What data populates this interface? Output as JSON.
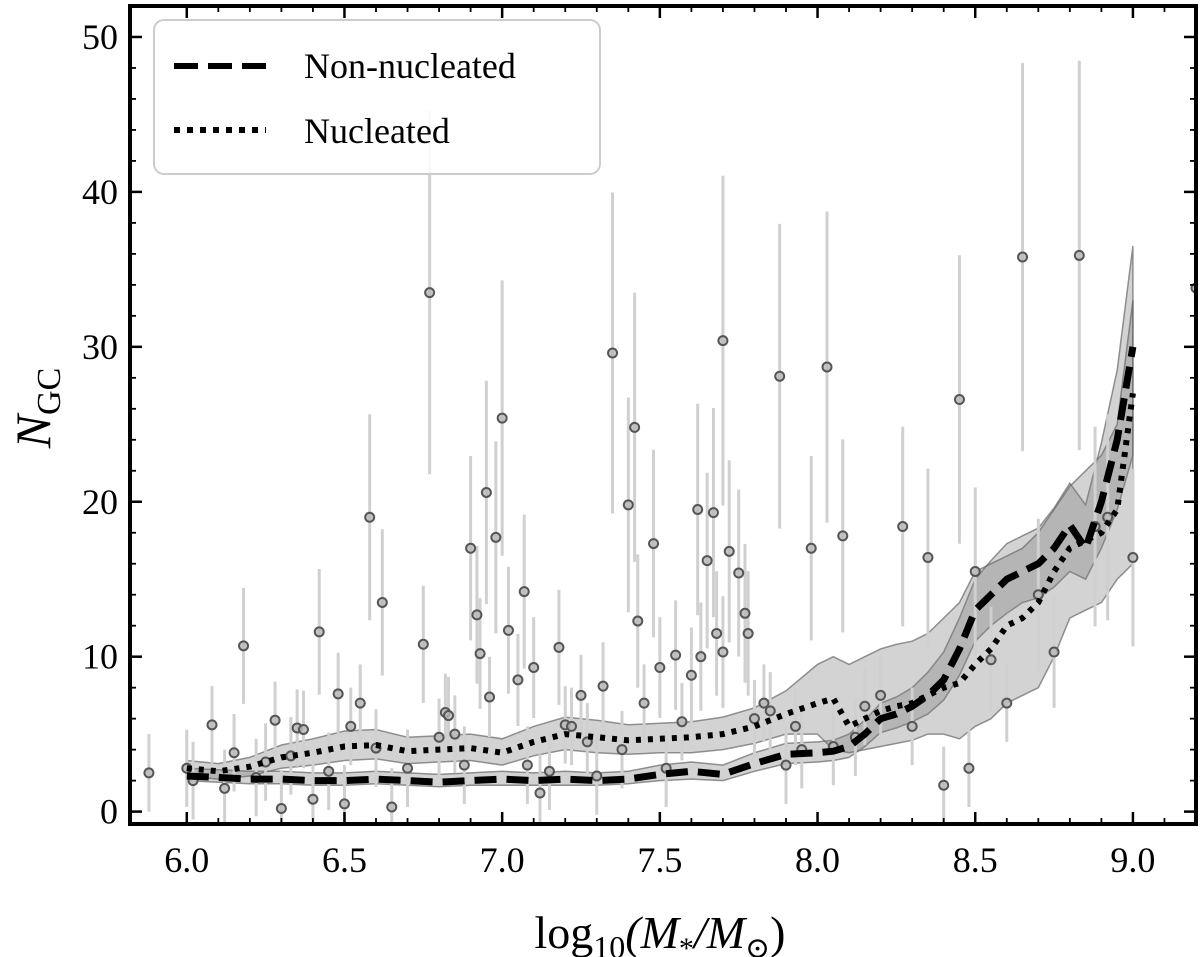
{
  "chart_data": {
    "type": "scatter",
    "title": "",
    "xlabel": {
      "main": "log",
      "sub": "10",
      "rest": "(M",
      "star": "*",
      "mid": "/M",
      "sun": "⊙",
      "end": ")"
    },
    "ylabel": {
      "main": "N",
      "sub": "GC"
    },
    "xlim": [
      5.82,
      9.2
    ],
    "ylim": [
      -0.8,
      52
    ],
    "xticks": [
      6.0,
      6.5,
      7.0,
      7.5,
      8.0,
      8.5,
      9.0
    ],
    "xtick_labels": [
      "6.0",
      "6.5",
      "7.0",
      "7.5",
      "8.0",
      "8.5",
      "9.0"
    ],
    "yticks": [
      0,
      10,
      20,
      30,
      40,
      50
    ],
    "ytick_labels": [
      "0",
      "10",
      "20",
      "30",
      "40",
      "50"
    ],
    "grid": false,
    "legend": {
      "position": "top-left",
      "entries": [
        {
          "label": "Non-nucleated",
          "style": "dashed"
        },
        {
          "label": "Nucleated",
          "style": "dotted"
        }
      ]
    },
    "scatter_points": [
      [
        5.88,
        2.5
      ],
      [
        6.0,
        2.8
      ],
      [
        6.02,
        2.0
      ],
      [
        6.08,
        5.6
      ],
      [
        6.12,
        1.5
      ],
      [
        6.15,
        3.8
      ],
      [
        6.18,
        10.7
      ],
      [
        6.22,
        2.2
      ],
      [
        6.25,
        3.2
      ],
      [
        6.28,
        5.9
      ],
      [
        6.3,
        0.2
      ],
      [
        6.33,
        3.6
      ],
      [
        6.35,
        5.4
      ],
      [
        6.37,
        5.3
      ],
      [
        6.4,
        0.8
      ],
      [
        6.42,
        11.6
      ],
      [
        6.45,
        2.6
      ],
      [
        6.48,
        7.6
      ],
      [
        6.5,
        0.5
      ],
      [
        6.52,
        5.5
      ],
      [
        6.55,
        7.0
      ],
      [
        6.58,
        19.0
      ],
      [
        6.6,
        4.1
      ],
      [
        6.62,
        13.5
      ],
      [
        6.65,
        0.3
      ],
      [
        6.7,
        2.8
      ],
      [
        6.75,
        10.8
      ],
      [
        6.77,
        33.5
      ],
      [
        6.8,
        4.8
      ],
      [
        6.82,
        6.4
      ],
      [
        6.83,
        6.2
      ],
      [
        6.85,
        5.0
      ],
      [
        6.88,
        3.0
      ],
      [
        6.9,
        17.0
      ],
      [
        6.92,
        12.7
      ],
      [
        6.93,
        10.2
      ],
      [
        6.95,
        20.6
      ],
      [
        6.96,
        7.4
      ],
      [
        6.98,
        17.7
      ],
      [
        7.0,
        25.4
      ],
      [
        7.02,
        11.7
      ],
      [
        7.05,
        8.5
      ],
      [
        7.07,
        14.2
      ],
      [
        7.08,
        3.0
      ],
      [
        7.1,
        9.3
      ],
      [
        7.12,
        1.2
      ],
      [
        7.15,
        2.6
      ],
      [
        7.18,
        10.6
      ],
      [
        7.2,
        5.6
      ],
      [
        7.22,
        5.5
      ],
      [
        7.25,
        7.5
      ],
      [
        7.27,
        4.5
      ],
      [
        7.3,
        2.3
      ],
      [
        7.32,
        8.1
      ],
      [
        7.35,
        29.6
      ],
      [
        7.38,
        4.0
      ],
      [
        7.4,
        19.8
      ],
      [
        7.42,
        24.8
      ],
      [
        7.43,
        12.3
      ],
      [
        7.45,
        7.0
      ],
      [
        7.48,
        17.3
      ],
      [
        7.5,
        9.3
      ],
      [
        7.52,
        2.8
      ],
      [
        7.55,
        10.1
      ],
      [
        7.57,
        5.8
      ],
      [
        7.6,
        8.8
      ],
      [
        7.62,
        19.5
      ],
      [
        7.63,
        10.0
      ],
      [
        7.65,
        16.2
      ],
      [
        7.67,
        19.3
      ],
      [
        7.68,
        11.5
      ],
      [
        7.7,
        10.3
      ],
      [
        7.72,
        16.8
      ],
      [
        7.75,
        15.4
      ],
      [
        7.77,
        12.8
      ],
      [
        7.78,
        11.5
      ],
      [
        7.7,
        30.4
      ],
      [
        7.8,
        6.0
      ],
      [
        7.83,
        7.0
      ],
      [
        7.85,
        6.5
      ],
      [
        7.88,
        28.1
      ],
      [
        7.9,
        3.0
      ],
      [
        7.93,
        5.5
      ],
      [
        7.95,
        4.0
      ],
      [
        7.98,
        17.0
      ],
      [
        8.03,
        28.7
      ],
      [
        8.05,
        4.2
      ],
      [
        8.08,
        17.8
      ],
      [
        8.12,
        4.8
      ],
      [
        8.15,
        6.8
      ],
      [
        8.2,
        7.5
      ],
      [
        8.27,
        18.4
      ],
      [
        8.3,
        5.5
      ],
      [
        8.35,
        16.4
      ],
      [
        8.4,
        1.7
      ],
      [
        8.45,
        26.6
      ],
      [
        8.48,
        2.8
      ],
      [
        8.5,
        15.5
      ],
      [
        8.55,
        9.8
      ],
      [
        8.6,
        7.0
      ],
      [
        8.65,
        35.8
      ],
      [
        8.7,
        14.0
      ],
      [
        8.75,
        10.3
      ],
      [
        8.83,
        35.9
      ],
      [
        8.88,
        18.4
      ],
      [
        8.92,
        19.0
      ],
      [
        9.0,
        16.4
      ],
      [
        9.2,
        33.8
      ]
    ],
    "series": [
      {
        "name": "Non-nucleated",
        "style": "dashed",
        "x": [
          6.0,
          6.1,
          6.2,
          6.3,
          6.4,
          6.5,
          6.6,
          6.7,
          6.8,
          6.9,
          7.0,
          7.1,
          7.2,
          7.3,
          7.4,
          7.5,
          7.6,
          7.7,
          7.8,
          7.9,
          8.0,
          8.05,
          8.1,
          8.15,
          8.2,
          8.25,
          8.3,
          8.35,
          8.4,
          8.45,
          8.5,
          8.55,
          8.6,
          8.65,
          8.7,
          8.75,
          8.8,
          8.85,
          8.9,
          8.95,
          9.0
        ],
        "y": [
          2.3,
          2.2,
          2.1,
          2.1,
          2.0,
          2.0,
          2.1,
          2.0,
          1.9,
          2.0,
          2.1,
          2.0,
          2.1,
          2.0,
          2.1,
          2.4,
          2.6,
          2.4,
          3.1,
          3.7,
          3.8,
          3.9,
          4.2,
          5.0,
          6.0,
          6.3,
          6.8,
          7.5,
          8.5,
          10.5,
          13.0,
          14.0,
          15.0,
          15.5,
          16.0,
          17.0,
          18.5,
          17.0,
          20.0,
          24.0,
          30.0
        ],
        "lower": [
          2.0,
          1.9,
          1.8,
          1.8,
          1.7,
          1.7,
          1.8,
          1.7,
          1.6,
          1.7,
          1.7,
          1.7,
          1.7,
          1.7,
          1.8,
          2.0,
          2.1,
          2.0,
          2.6,
          3.1,
          3.2,
          3.3,
          3.5,
          4.2,
          5.1,
          5.4,
          5.8,
          6.3,
          7.2,
          8.8,
          11.0,
          12.0,
          12.8,
          13.5,
          13.8,
          14.5,
          15.5,
          15.0,
          17.0,
          19.5,
          23.0
        ],
        "upper": [
          2.8,
          2.7,
          2.6,
          2.6,
          2.5,
          2.5,
          2.6,
          2.5,
          2.4,
          2.5,
          2.6,
          2.5,
          2.6,
          2.5,
          2.6,
          3.0,
          3.2,
          3.0,
          3.8,
          4.4,
          4.5,
          4.6,
          5.0,
          5.9,
          7.0,
          7.4,
          8.0,
          9.0,
          10.3,
          12.5,
          15.0,
          16.2,
          17.3,
          17.8,
          18.3,
          19.6,
          21.2,
          19.8,
          23.8,
          28.5,
          36.5
        ]
      },
      {
        "name": "Nucleated",
        "style": "dotted",
        "x": [
          6.0,
          6.1,
          6.2,
          6.3,
          6.4,
          6.5,
          6.6,
          6.7,
          6.8,
          6.9,
          7.0,
          7.1,
          7.2,
          7.3,
          7.4,
          7.5,
          7.6,
          7.7,
          7.8,
          7.9,
          8.0,
          8.05,
          8.1,
          8.15,
          8.2,
          8.25,
          8.3,
          8.35,
          8.4,
          8.45,
          8.5,
          8.55,
          8.6,
          8.65,
          8.7,
          8.75,
          8.8,
          8.85,
          8.9,
          8.95,
          9.0
        ],
        "y": [
          2.8,
          2.6,
          2.9,
          3.5,
          3.8,
          4.2,
          4.3,
          3.9,
          4.0,
          4.1,
          3.8,
          4.5,
          5.0,
          4.8,
          4.6,
          4.7,
          4.8,
          5.0,
          5.5,
          6.3,
          7.0,
          7.3,
          5.5,
          6.0,
          6.5,
          6.8,
          7.0,
          7.5,
          8.0,
          8.3,
          9.5,
          10.5,
          12.0,
          12.5,
          13.5,
          15.5,
          17.0,
          17.5,
          18.0,
          19.5,
          27.0
        ],
        "lower": [
          2.3,
          2.1,
          2.3,
          2.8,
          3.0,
          3.3,
          3.4,
          3.1,
          3.2,
          3.3,
          3.0,
          3.6,
          4.0,
          3.8,
          3.7,
          3.8,
          3.8,
          4.0,
          4.4,
          5.0,
          5.0,
          4.0,
          3.8,
          4.0,
          4.2,
          4.4,
          4.6,
          5.0,
          5.0,
          4.7,
          5.5,
          6.0,
          7.0,
          7.5,
          8.0,
          10.0,
          12.5,
          13.0,
          13.5,
          15.0,
          16.0
        ],
        "upper": [
          3.3,
          3.1,
          3.5,
          4.3,
          4.7,
          5.2,
          5.3,
          4.8,
          4.9,
          5.0,
          4.7,
          5.5,
          6.1,
          5.9,
          5.6,
          5.7,
          5.8,
          6.1,
          6.7,
          7.8,
          9.5,
          10.0,
          9.5,
          10.0,
          10.5,
          10.8,
          11.0,
          11.5,
          12.5,
          13.5,
          15.5,
          16.0,
          16.5,
          17.0,
          18.0,
          19.5,
          21.0,
          22.0,
          23.0,
          25.0,
          33.0
        ]
      }
    ]
  }
}
